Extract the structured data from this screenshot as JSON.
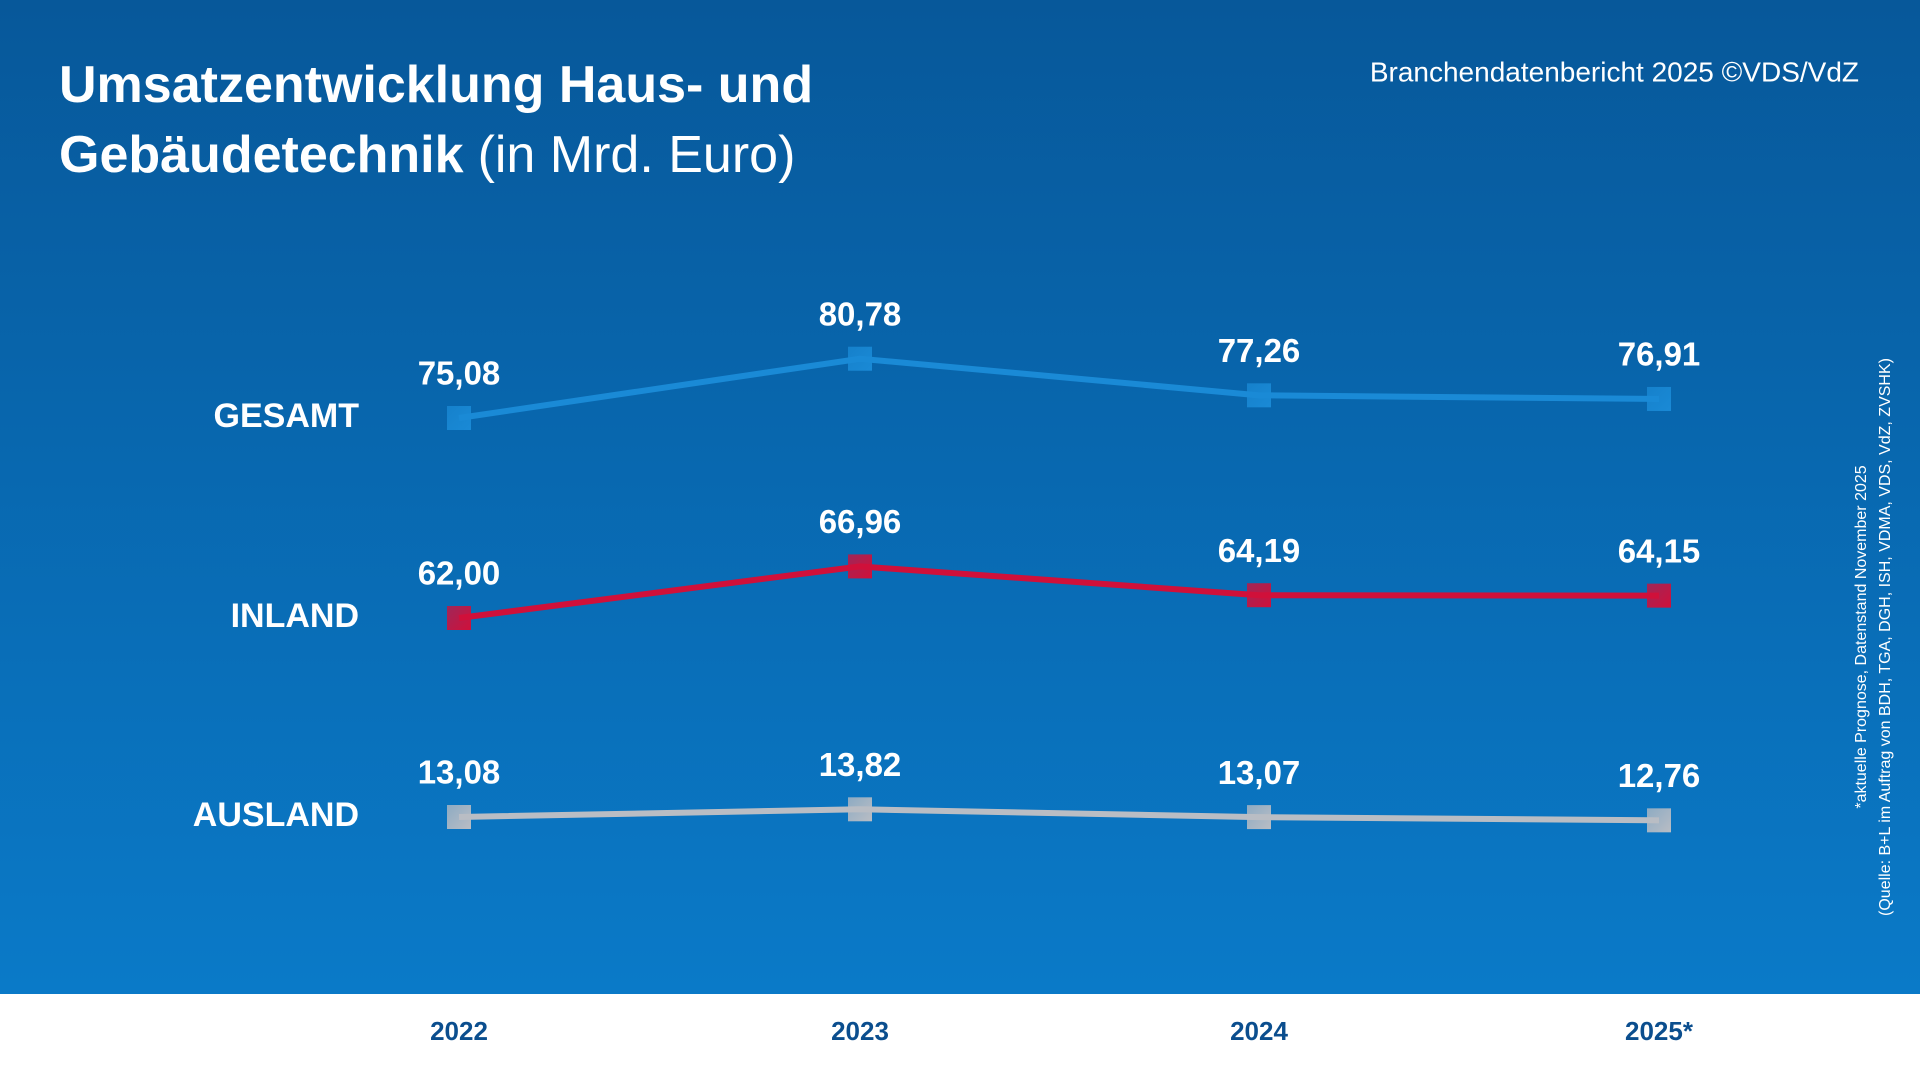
{
  "chart_data": {
    "type": "line",
    "title": [
      "Umsatzentwicklung Haus- und",
      "Gebäudetechnik"
    ],
    "title_unit": "(in Mrd. Euro)",
    "source": "Branchendatenbericht 2025 ©VDS/VdZ",
    "footnotes": [
      "*aktuelle Prognose, Datenstand November 2025",
      "(Quelle: B+L im Auftrag von BDH, TGA, DGH, ISH, VDMA, VDS, VdZ, ZVSHK)"
    ],
    "categories": [
      "2022",
      "2023",
      "2024",
      "2025*"
    ],
    "series": [
      {
        "name": "GESAMT",
        "color": "#1a8ad6",
        "values": [
          75.08,
          80.78,
          77.26,
          76.91
        ],
        "value_labels": [
          "75,08",
          "80,78",
          "77,26",
          "76,91"
        ]
      },
      {
        "name": "INLAND",
        "color": "#d0103a",
        "values": [
          62.0,
          66.96,
          64.19,
          64.15
        ],
        "value_labels": [
          "62,00",
          "66,96",
          "64,19",
          "64,15"
        ]
      },
      {
        "name": "AUSLAND",
        "color": "#b9bdc4",
        "values": [
          13.08,
          13.82,
          13.07,
          12.76
        ],
        "value_labels": [
          "13,08",
          "13,82",
          "13,07",
          "12,76"
        ]
      }
    ]
  }
}
